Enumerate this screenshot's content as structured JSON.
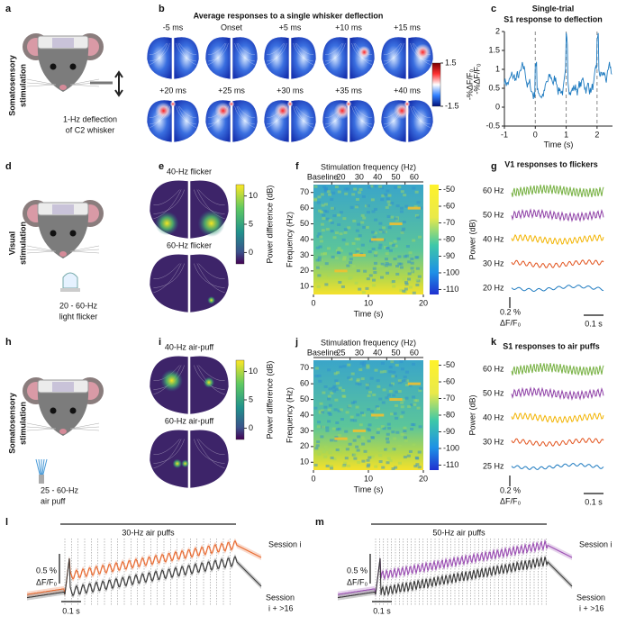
{
  "letters": [
    "a",
    "b",
    "c",
    "d",
    "e",
    "f",
    "g",
    "h",
    "i",
    "j",
    "k",
    "l",
    "m"
  ],
  "row_labels": [
    [
      "Somatosensory",
      "stimulation"
    ],
    [
      "Visual",
      "stimulation"
    ],
    [
      "Somatosensory",
      "stimulation"
    ]
  ],
  "a": {
    "caption": [
      "1-Hz deflection",
      "of C2 whisker"
    ]
  },
  "b": {
    "title": "Average responses to a single whisker deflection",
    "frames": [
      "-5 ms",
      "Onset",
      "+5 ms",
      "+10 ms",
      "+15 ms",
      "+20 ms",
      "+25 ms",
      "+30 ms",
      "+35 ms",
      "+40 ms"
    ],
    "colorbar": {
      "label": "-%ΔF/F₀",
      "lim": [
        -1.5,
        1.5
      ],
      "ticks": [
        1.5,
        -1.5
      ]
    }
  },
  "c": {
    "title": [
      "Single-trial",
      "S1 response to deflection"
    ],
    "xlabel": "Time (s)",
    "ylabel": "-%ΔF/F₀",
    "xlim": [
      -1,
      2.5
    ],
    "ylim": [
      -0.5,
      2
    ],
    "xticks": [
      -1,
      0,
      1,
      2
    ],
    "yticks": [
      -0.5,
      0,
      0.5,
      1,
      1.5,
      2
    ],
    "stim_times": [
      0,
      1,
      2
    ]
  },
  "d": {
    "caption": [
      "20 - 60-Hz",
      "light flicker"
    ]
  },
  "e": {
    "maps": [
      "40-Hz flicker",
      "60-Hz flicker"
    ],
    "colorbar": {
      "label": "Power difference (dB)",
      "lim": [
        -2,
        12
      ],
      "ticks": [
        0,
        5,
        10
      ]
    }
  },
  "f": {
    "top_label": "Stimulation frequency (Hz)",
    "segments": [
      "Baseline",
      "20",
      "30",
      "40",
      "50",
      "60"
    ],
    "xlabel": "Time (s)",
    "ylabel": "Frequency (Hz)",
    "xlim": [
      0,
      20
    ],
    "ylim": [
      5,
      75
    ],
    "xticks": [
      0,
      10,
      20
    ],
    "yticks": [
      10,
      20,
      30,
      40,
      50,
      60,
      70
    ],
    "colorbar": {
      "label": "Power (dB)",
      "lim": [
        -113,
        -47
      ],
      "ticks": [
        -50,
        -60,
        -70,
        -80,
        -90,
        -100,
        -110
      ]
    }
  },
  "g": {
    "title": "V1 responses to flickers",
    "traces": [
      {
        "name": "60 Hz",
        "color": "#76b041"
      },
      {
        "name": "50 Hz",
        "color": "#8e3fa6"
      },
      {
        "name": "40 Hz",
        "color": "#f2b300"
      },
      {
        "name": "30 Hz",
        "color": "#e2531d"
      },
      {
        "name": "20 Hz",
        "color": "#1f7bc0"
      }
    ],
    "scale": {
      "y": "0.2 %",
      "unit": "ΔF/F₀",
      "x": "0.1 s"
    }
  },
  "h": {
    "caption": [
      "25 - 60-Hz",
      "air puff"
    ]
  },
  "i": {
    "maps": [
      "40-Hz air-puff",
      "60-Hz air-puff"
    ],
    "colorbar": {
      "label": "Power difference (dB)",
      "lim": [
        -2,
        12
      ],
      "ticks": [
        0,
        5,
        10
      ]
    }
  },
  "j": {
    "top_label": "Stimulation frequency (Hz)",
    "segments": [
      "Baseline",
      "25",
      "30",
      "40",
      "50",
      "60"
    ],
    "xlabel": "Time (s)",
    "ylabel": "Frequency (Hz)",
    "xlim": [
      0,
      20
    ],
    "ylim": [
      5,
      75
    ],
    "xticks": [
      0,
      10,
      20
    ],
    "yticks": [
      10,
      20,
      30,
      40,
      50,
      60,
      70
    ],
    "colorbar": {
      "label": "Power (dB)",
      "lim": [
        -113,
        -47
      ],
      "ticks": [
        -50,
        -60,
        -70,
        -80,
        -90,
        -100,
        -110
      ]
    }
  },
  "k": {
    "title": "S1 responses to air puffs",
    "traces": [
      {
        "name": "60 Hz",
        "color": "#76b041"
      },
      {
        "name": "50 Hz",
        "color": "#8e3fa6"
      },
      {
        "name": "40 Hz",
        "color": "#f2b300"
      },
      {
        "name": "30 Hz",
        "color": "#e2531d"
      },
      {
        "name": "25 Hz",
        "color": "#1f7bc0"
      }
    ],
    "scale": {
      "y": "0.2 %",
      "unit": "ΔF/F₀",
      "x": "0.1 s"
    }
  },
  "l": {
    "bar_label": "30-Hz air puffs",
    "scale": {
      "y": "0.5 %",
      "unit": "ΔF/F₀",
      "x": "0.1 s"
    },
    "sessions": [
      {
        "name": [
          "Session i"
        ],
        "color": "#e8692f"
      },
      {
        "name": [
          "Session",
          "i + >16"
        ],
        "color": "#3a3a3a"
      }
    ]
  },
  "m": {
    "bar_label": "50-Hz air puffs",
    "scale": {
      "y": "0.5 %",
      "unit": "ΔF/F₀",
      "x": "0.1 s"
    },
    "sessions": [
      {
        "name": [
          "Session i"
        ],
        "color": "#9b4fb3"
      },
      {
        "name": [
          "Session",
          "i + >16"
        ],
        "color": "#3a3a3a"
      }
    ]
  }
}
